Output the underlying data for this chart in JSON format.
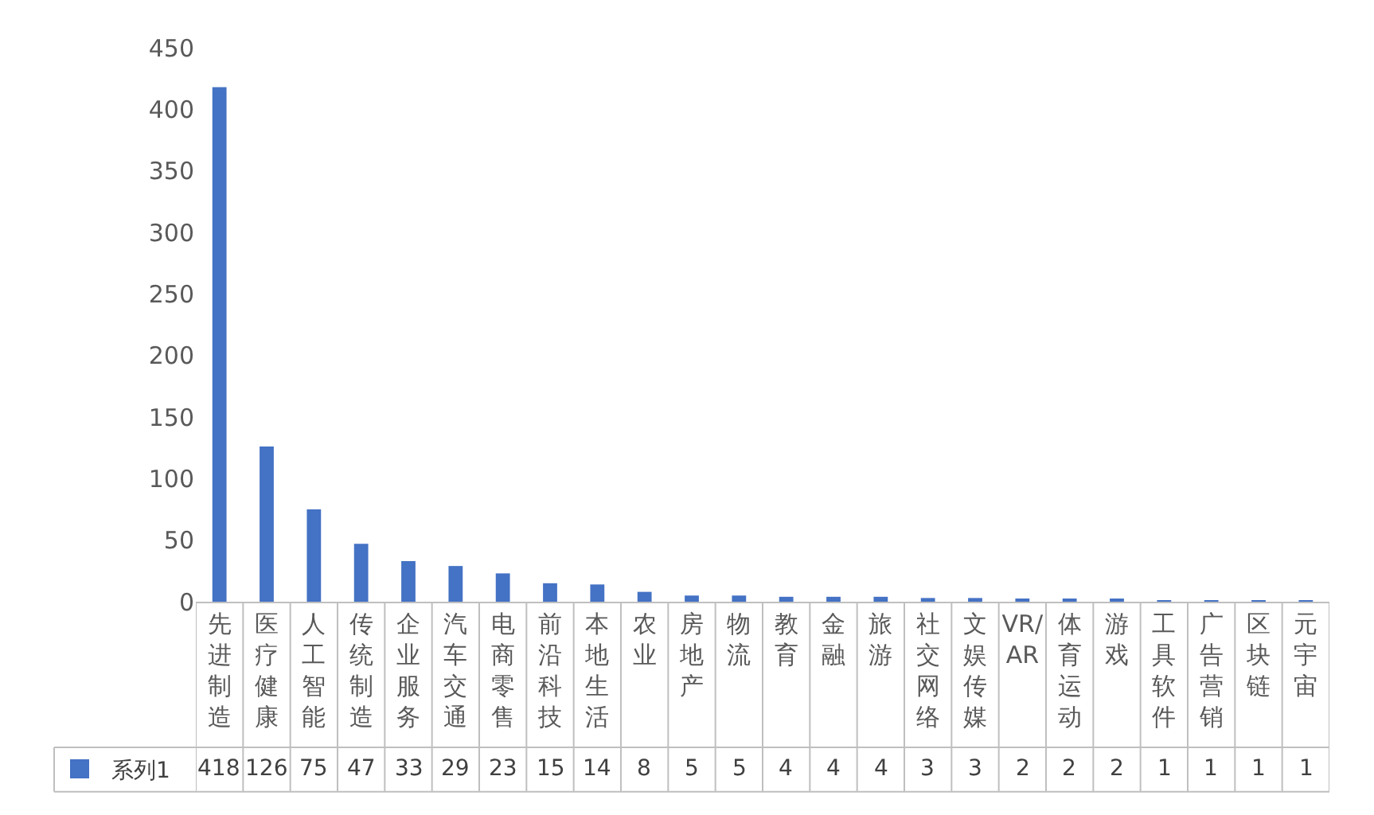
{
  "chart_data": {
    "type": "bar",
    "categories": [
      "先进制造",
      "医疗健康",
      "人工智能",
      "传统制造",
      "企业服务",
      "汽车交通",
      "电商零售",
      "前沿科技",
      "本地生活",
      "农业",
      "房地产",
      "物流",
      "教育",
      "金融",
      "旅游",
      "社交网络",
      "文娱传媒",
      "VR/AR",
      "体育运动",
      "游戏",
      "工具软件",
      "广告营销",
      "区块链",
      "元宇宙"
    ],
    "series": [
      {
        "name": "系列1",
        "color": "#4472c4",
        "values": [
          418,
          126,
          75,
          47,
          33,
          29,
          23,
          15,
          14,
          8,
          5,
          5,
          4,
          4,
          4,
          3,
          3,
          2,
          2,
          2,
          1,
          1,
          1,
          1
        ]
      }
    ],
    "ylim": [
      0,
      450
    ],
    "yticks": [
      0,
      50,
      100,
      150,
      200,
      250,
      300,
      350,
      400,
      450
    ],
    "data_labels": true,
    "legend": "bottom",
    "grid": false
  }
}
